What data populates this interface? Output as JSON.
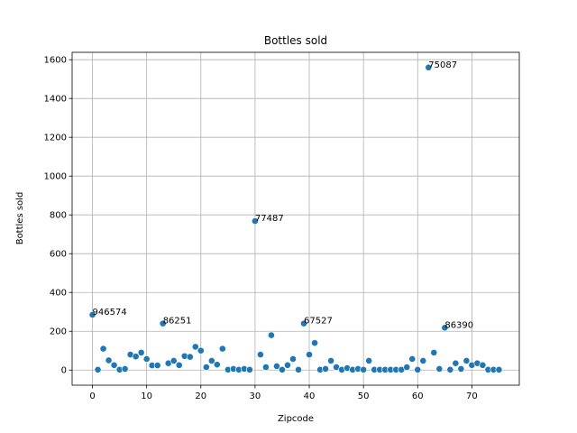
{
  "chart_data": {
    "type": "scatter",
    "title": "Bottles sold",
    "xlabel": "Zipcode",
    "ylabel": "Bottles sold",
    "xlim": [
      -3.75,
      78.75
    ],
    "ylim": [
      -78,
      1638
    ],
    "xticks": [
      0,
      10,
      20,
      30,
      40,
      50,
      60,
      70
    ],
    "yticks": [
      0,
      200,
      400,
      600,
      800,
      1000,
      1200,
      1400,
      1600
    ],
    "grid": true,
    "marker_color": "#1f77b4",
    "points": [
      {
        "x": 0,
        "y": 285
      },
      {
        "x": 1,
        "y": 2
      },
      {
        "x": 2,
        "y": 110
      },
      {
        "x": 3,
        "y": 50
      },
      {
        "x": 4,
        "y": 25
      },
      {
        "x": 5,
        "y": 2
      },
      {
        "x": 6,
        "y": 6
      },
      {
        "x": 7,
        "y": 80
      },
      {
        "x": 8,
        "y": 70
      },
      {
        "x": 9,
        "y": 90
      },
      {
        "x": 10,
        "y": 57
      },
      {
        "x": 11,
        "y": 24
      },
      {
        "x": 12,
        "y": 24
      },
      {
        "x": 13,
        "y": 240
      },
      {
        "x": 14,
        "y": 35
      },
      {
        "x": 15,
        "y": 48
      },
      {
        "x": 16,
        "y": 25
      },
      {
        "x": 17,
        "y": 72
      },
      {
        "x": 18,
        "y": 68
      },
      {
        "x": 19,
        "y": 120
      },
      {
        "x": 20,
        "y": 100
      },
      {
        "x": 21,
        "y": 15
      },
      {
        "x": 22,
        "y": 48
      },
      {
        "x": 23,
        "y": 28
      },
      {
        "x": 24,
        "y": 110
      },
      {
        "x": 25,
        "y": 2
      },
      {
        "x": 26,
        "y": 6
      },
      {
        "x": 27,
        "y": 2
      },
      {
        "x": 28,
        "y": 6
      },
      {
        "x": 29,
        "y": 2
      },
      {
        "x": 30,
        "y": 768
      },
      {
        "x": 31,
        "y": 80
      },
      {
        "x": 32,
        "y": 15
      },
      {
        "x": 33,
        "y": 180
      },
      {
        "x": 34,
        "y": 20
      },
      {
        "x": 35,
        "y": 2
      },
      {
        "x": 36,
        "y": 25
      },
      {
        "x": 37,
        "y": 57
      },
      {
        "x": 38,
        "y": 2
      },
      {
        "x": 39,
        "y": 240
      },
      {
        "x": 40,
        "y": 80
      },
      {
        "x": 41,
        "y": 140
      },
      {
        "x": 42,
        "y": 2
      },
      {
        "x": 43,
        "y": 6
      },
      {
        "x": 44,
        "y": 48
      },
      {
        "x": 45,
        "y": 15
      },
      {
        "x": 46,
        "y": 2
      },
      {
        "x": 47,
        "y": 10
      },
      {
        "x": 48,
        "y": 2
      },
      {
        "x": 49,
        "y": 6
      },
      {
        "x": 50,
        "y": 2
      },
      {
        "x": 51,
        "y": 48
      },
      {
        "x": 52,
        "y": 2
      },
      {
        "x": 53,
        "y": 2
      },
      {
        "x": 54,
        "y": 2
      },
      {
        "x": 55,
        "y": 2
      },
      {
        "x": 56,
        "y": 2
      },
      {
        "x": 57,
        "y": 2
      },
      {
        "x": 58,
        "y": 15
      },
      {
        "x": 59,
        "y": 57
      },
      {
        "x": 60,
        "y": 2
      },
      {
        "x": 61,
        "y": 48
      },
      {
        "x": 62,
        "y": 1560
      },
      {
        "x": 63,
        "y": 90
      },
      {
        "x": 64,
        "y": 6
      },
      {
        "x": 65,
        "y": 218
      },
      {
        "x": 66,
        "y": 2
      },
      {
        "x": 67,
        "y": 35
      },
      {
        "x": 68,
        "y": 6
      },
      {
        "x": 69,
        "y": 48
      },
      {
        "x": 70,
        "y": 25
      },
      {
        "x": 71,
        "y": 35
      },
      {
        "x": 72,
        "y": 25
      },
      {
        "x": 73,
        "y": 2
      },
      {
        "x": 74,
        "y": 2
      },
      {
        "x": 75,
        "y": 2
      }
    ],
    "annotations": [
      {
        "x": 0,
        "y": 285,
        "text": "946574"
      },
      {
        "x": 13,
        "y": 240,
        "text": "86251"
      },
      {
        "x": 30,
        "y": 768,
        "text": "77487"
      },
      {
        "x": 39,
        "y": 240,
        "text": "67527"
      },
      {
        "x": 62,
        "y": 1560,
        "text": "75087"
      },
      {
        "x": 65,
        "y": 218,
        "text": "86390"
      }
    ]
  }
}
